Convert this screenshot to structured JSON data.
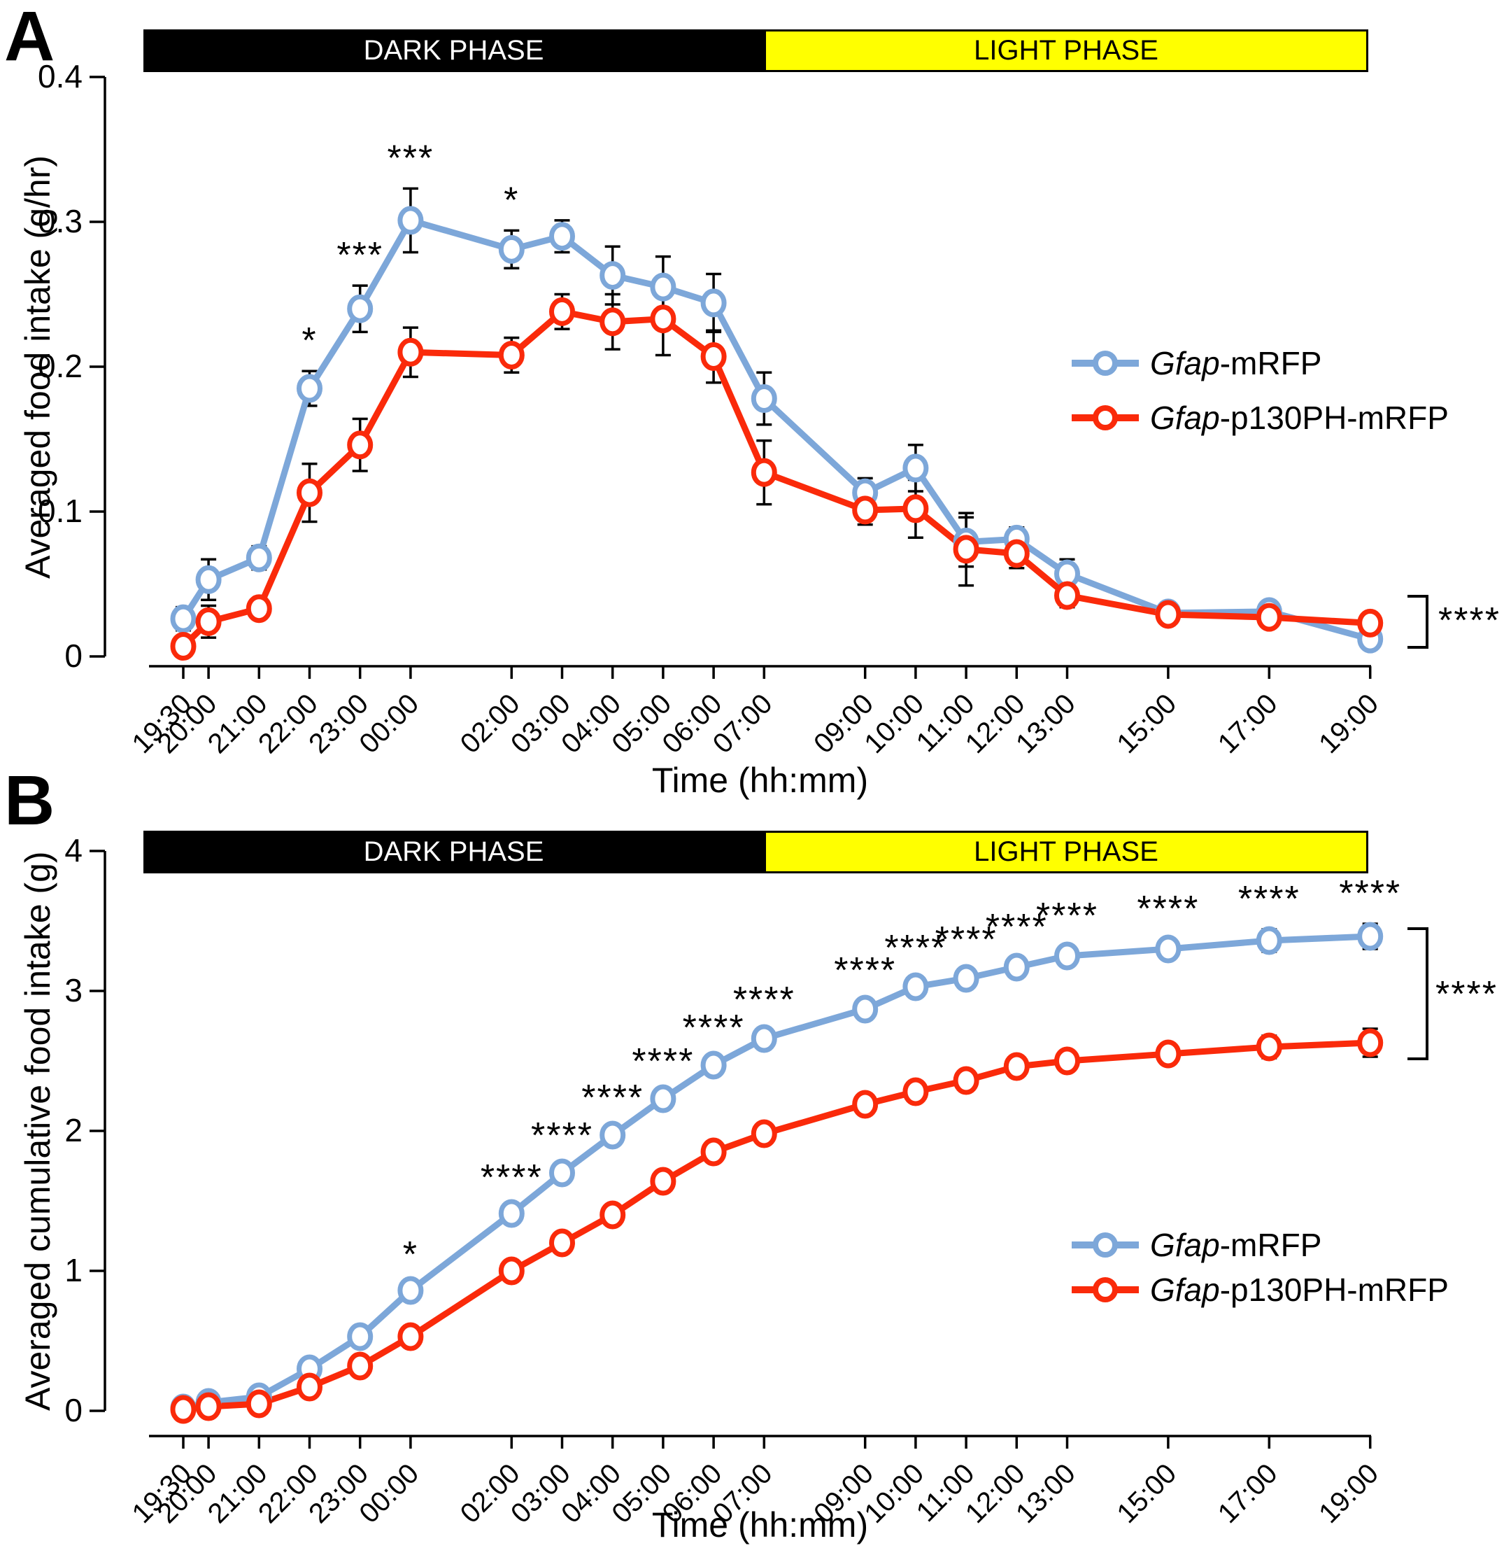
{
  "figure": {
    "panel_a": {
      "letter": "A",
      "dark_label": "DARK PHASE",
      "light_label": "LIGHT PHASE",
      "y_title": "Averaged food intake (g/hr)",
      "x_title": "Time (hh:mm)",
      "overall_sig": "****",
      "legend": [
        {
          "italic": "Gfap",
          "rest": "-mRFP"
        },
        {
          "italic": "Gfap",
          "rest": "-p130PH-mRFP"
        }
      ]
    },
    "panel_b": {
      "letter": "B",
      "dark_label": "DARK PHASE",
      "light_label": "LIGHT PHASE",
      "y_title": "Averaged cumulative food intake (g)",
      "x_title": "Time (hh:mm)",
      "overall_sig": "****",
      "legend": [
        {
          "italic": "Gfap",
          "rest": "-mRFP"
        },
        {
          "italic": "Gfap",
          "rest": "-p130PH-mRFP"
        }
      ]
    },
    "colors": {
      "blue": "#7DA7D9",
      "red": "#FA2A0A",
      "yellow": "#FFFF00",
      "black": "#000000"
    }
  },
  "chart_data": [
    {
      "type": "line",
      "panel": "A",
      "title": "",
      "xlabel": "Time (hh:mm)",
      "ylabel": "Averaged food intake (g/hr)",
      "categories": [
        "19:30",
        "20:00",
        "21:00",
        "22:00",
        "23:00",
        "00:00",
        "02:00",
        "03:00",
        "04:00",
        "05:00",
        "06:00",
        "07:00",
        "09:00",
        "10:00",
        "11:00",
        "12:00",
        "13:00",
        "15:00",
        "17:00",
        "19:00"
      ],
      "x_hours": [
        19.5,
        20,
        21,
        22,
        23,
        24,
        26,
        27,
        28,
        29,
        30,
        31,
        33,
        34,
        35,
        36,
        37,
        39,
        41,
        43
      ],
      "ylim": [
        0,
        0.4
      ],
      "yticks": [
        0,
        0.1,
        0.2,
        0.3,
        0.4
      ],
      "ytick_labels": [
        "0",
        "0.1",
        "0.2",
        "0.3",
        "0.4"
      ],
      "grid": false,
      "legend_position": "right-middle",
      "phases": {
        "dark": {
          "label": "DARK PHASE",
          "start": "19:30",
          "end": "07:00"
        },
        "light": {
          "label": "LIGHT PHASE",
          "start": "07:00",
          "end": "19:00"
        }
      },
      "series": [
        {
          "name": "Gfap-mRFP",
          "color": "#7DA7D9",
          "values": [
            0.026,
            0.053,
            0.068,
            0.185,
            0.24,
            0.301,
            0.281,
            0.29,
            0.263,
            0.255,
            0.244,
            0.178,
            0.113,
            0.13,
            0.079,
            0.081,
            0.057,
            0.03,
            0.031,
            0.012
          ],
          "errors": [
            0.008,
            0.014,
            0.008,
            0.012,
            0.016,
            0.022,
            0.013,
            0.011,
            0.02,
            0.021,
            0.02,
            0.018,
            0.01,
            0.016,
            0.017,
            0.008,
            0.01,
            0.005,
            0.005,
            0.006
          ]
        },
        {
          "name": "Gfap-p130PH-mRFP",
          "color": "#FA2A0A",
          "values": [
            0.007,
            0.024,
            0.033,
            0.113,
            0.146,
            0.21,
            0.208,
            0.238,
            0.231,
            0.233,
            0.207,
            0.127,
            0.101,
            0.102,
            0.074,
            0.071,
            0.042,
            0.029,
            0.027,
            0.023
          ],
          "errors": [
            0.005,
            0.011,
            0.006,
            0.02,
            0.018,
            0.017,
            0.012,
            0.012,
            0.019,
            0.025,
            0.018,
            0.022,
            0.01,
            0.02,
            0.025,
            0.01,
            0.008,
            0.004,
            0.004,
            0.006
          ]
        }
      ],
      "significance": {
        "22:00": "*",
        "23:00": "***",
        "00:00": "***",
        "02:00": "*"
      },
      "overall_significance": "****"
    },
    {
      "type": "line",
      "panel": "B",
      "title": "",
      "xlabel": "Time (hh:mm)",
      "ylabel": "Averaged cumulative food intake (g)",
      "categories": [
        "19:30",
        "20:00",
        "21:00",
        "22:00",
        "23:00",
        "00:00",
        "02:00",
        "03:00",
        "04:00",
        "05:00",
        "06:00",
        "07:00",
        "09:00",
        "10:00",
        "11:00",
        "12:00",
        "13:00",
        "15:00",
        "17:00",
        "19:00"
      ],
      "x_hours": [
        19.5,
        20,
        21,
        22,
        23,
        24,
        26,
        27,
        28,
        29,
        30,
        31,
        33,
        34,
        35,
        36,
        37,
        39,
        41,
        43
      ],
      "ylim": [
        0,
        4
      ],
      "yticks": [
        0,
        1,
        2,
        3,
        4
      ],
      "ytick_labels": [
        "0",
        "1",
        "2",
        "3",
        "4"
      ],
      "grid": false,
      "legend_position": "right-lower",
      "phases": {
        "dark": {
          "label": "DARK PHASE",
          "start": "19:30",
          "end": "07:00"
        },
        "light": {
          "label": "LIGHT PHASE",
          "start": "07:00",
          "end": "19:00"
        }
      },
      "series": [
        {
          "name": "Gfap-mRFP",
          "color": "#7DA7D9",
          "values": [
            0.02,
            0.06,
            0.1,
            0.3,
            0.53,
            0.86,
            1.41,
            1.7,
            1.97,
            2.23,
            2.47,
            2.66,
            2.87,
            3.03,
            3.09,
            3.17,
            3.25,
            3.3,
            3.36,
            3.39
          ],
          "errors": [
            0.02,
            0.02,
            0.02,
            0.03,
            0.03,
            0.04,
            0.04,
            0.05,
            0.05,
            0.05,
            0.05,
            0.06,
            0.06,
            0.06,
            0.06,
            0.07,
            0.07,
            0.07,
            0.08,
            0.09
          ]
        },
        {
          "name": "Gfap-p130PH-mRFP",
          "color": "#FA2A0A",
          "values": [
            0.01,
            0.03,
            0.05,
            0.17,
            0.32,
            0.53,
            1.0,
            1.2,
            1.4,
            1.64,
            1.85,
            1.98,
            2.19,
            2.28,
            2.36,
            2.46,
            2.5,
            2.55,
            2.6,
            2.63
          ],
          "errors": [
            0.01,
            0.01,
            0.02,
            0.02,
            0.03,
            0.04,
            0.04,
            0.05,
            0.05,
            0.05,
            0.05,
            0.06,
            0.06,
            0.06,
            0.06,
            0.06,
            0.06,
            0.07,
            0.08,
            0.1
          ]
        }
      ],
      "significance": {
        "00:00": "*",
        "02:00": "****",
        "03:00": "****",
        "04:00": "****",
        "05:00": "****",
        "06:00": "****",
        "07:00": "****",
        "09:00": "****",
        "10:00": "****",
        "11:00": "****",
        "12:00": "****",
        "13:00": "****",
        "15:00": "****",
        "17:00": "****",
        "19:00": "****"
      },
      "overall_significance": "****"
    }
  ]
}
